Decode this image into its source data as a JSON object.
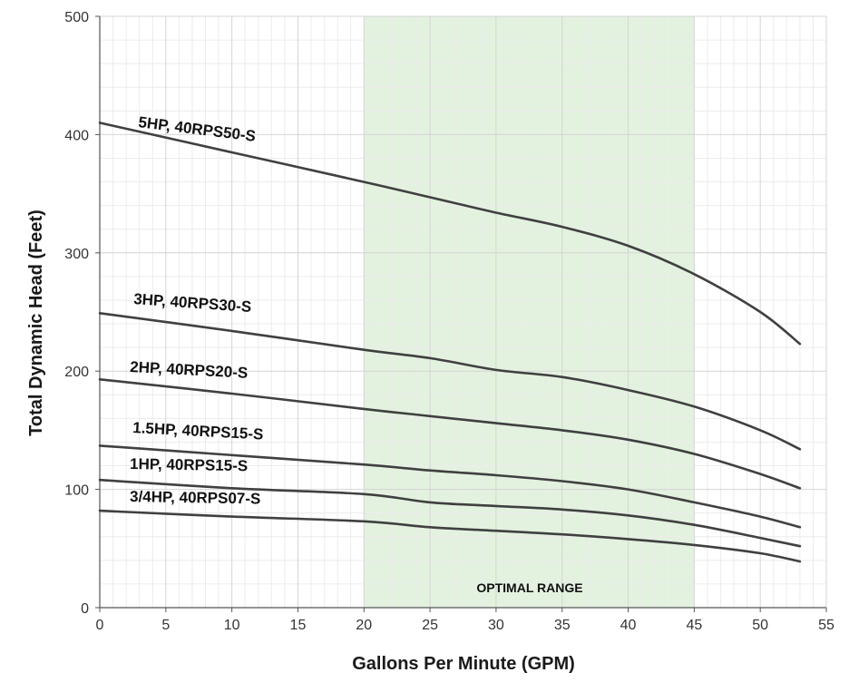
{
  "chart_data": {
    "type": "line",
    "xlabel": "Gallons Per Minute (GPM)",
    "ylabel": "Total Dynamic Head (Feet)",
    "xlim": [
      0,
      55
    ],
    "ylim": [
      0,
      500
    ],
    "x_ticks": [
      "0",
      "5",
      "10",
      "15",
      "20",
      "25",
      "30",
      "35",
      "40",
      "45",
      "50",
      "55"
    ],
    "y_ticks": [
      "0",
      "100",
      "200",
      "300",
      "400",
      "500"
    ],
    "grid": true,
    "optimal_range": {
      "x_start": 20,
      "x_end": 45,
      "label": "OPTIMAL RANGE",
      "color": "#e3f2df"
    },
    "line_color": "#404040",
    "series": [
      {
        "name": "5HP,  40RPS50-S",
        "points": [
          [
            0,
            410
          ],
          [
            10,
            385
          ],
          [
            20,
            360
          ],
          [
            25,
            347
          ],
          [
            30,
            334
          ],
          [
            35,
            322
          ],
          [
            40,
            306
          ],
          [
            45,
            282
          ],
          [
            50,
            250
          ],
          [
            53,
            223
          ]
        ]
      },
      {
        "name": "3HP,  40RPS30-S",
        "points": [
          [
            0,
            249
          ],
          [
            10,
            234
          ],
          [
            20,
            218
          ],
          [
            25,
            211
          ],
          [
            30,
            201
          ],
          [
            35,
            195
          ],
          [
            40,
            184
          ],
          [
            45,
            170
          ],
          [
            50,
            150
          ],
          [
            53,
            134
          ]
        ]
      },
      {
        "name": "2HP, 40RPS20-S",
        "points": [
          [
            0,
            193
          ],
          [
            10,
            181
          ],
          [
            20,
            168
          ],
          [
            25,
            162
          ],
          [
            30,
            156
          ],
          [
            35,
            150
          ],
          [
            40,
            142
          ],
          [
            45,
            130
          ],
          [
            50,
            113
          ],
          [
            53,
            101
          ]
        ]
      },
      {
        "name": "1.5HP, 40RPS15-S",
        "points": [
          [
            0,
            137
          ],
          [
            10,
            129
          ],
          [
            20,
            121
          ],
          [
            25,
            116
          ],
          [
            30,
            112
          ],
          [
            35,
            107
          ],
          [
            40,
            100
          ],
          [
            45,
            89
          ],
          [
            50,
            77
          ],
          [
            53,
            68
          ]
        ]
      },
      {
        "name": "1HP, 40RPS15-S",
        "points": [
          [
            0,
            108
          ],
          [
            10,
            101
          ],
          [
            20,
            96
          ],
          [
            25,
            89
          ],
          [
            30,
            86
          ],
          [
            35,
            83
          ],
          [
            40,
            78
          ],
          [
            45,
            70
          ],
          [
            50,
            59
          ],
          [
            53,
            52
          ]
        ]
      },
      {
        "name": "3/4HP, 40RPS07-S",
        "points": [
          [
            0,
            82
          ],
          [
            10,
            77
          ],
          [
            20,
            73
          ],
          [
            25,
            68
          ],
          [
            30,
            65
          ],
          [
            35,
            62
          ],
          [
            40,
            58
          ],
          [
            45,
            53
          ],
          [
            50,
            46
          ],
          [
            53,
            39
          ]
        ]
      }
    ]
  }
}
